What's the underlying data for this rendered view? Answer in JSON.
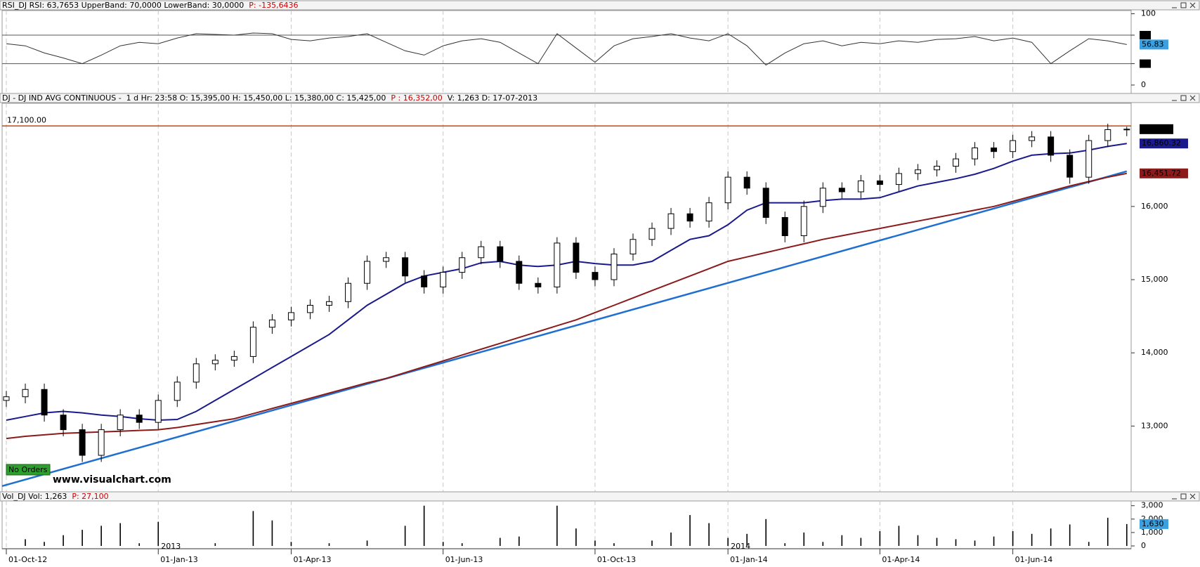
{
  "chart_data": [
    {
      "type": "line",
      "panel": "rsi",
      "header": [
        {
          "text": "RSI_DJ RSI: 63,7653 UpperBand: 70,0000 LowerBand: 30,0000",
          "color": "#000000"
        },
        {
          "text": "P: -135,6436",
          "color": "#cc0000"
        }
      ],
      "ylim": [
        0,
        100
      ],
      "yticks": [
        0,
        30,
        70,
        100
      ],
      "bands": [
        30,
        70
      ],
      "series": [
        {
          "name": "RSI",
          "color": "#333333",
          "last_label": "56.83",
          "label_color": "#3aa0e0",
          "values": [
            58,
            55,
            45,
            38,
            30,
            42,
            55,
            60,
            58,
            66,
            72,
            71,
            70,
            73,
            72,
            64,
            62,
            66,
            68,
            72,
            60,
            48,
            42,
            55,
            62,
            65,
            60,
            45,
            30,
            72,
            52,
            32,
            55,
            65,
            68,
            72,
            66,
            62,
            72,
            55,
            28,
            45,
            58,
            62,
            55,
            60,
            58,
            62,
            60,
            64,
            65,
            68,
            62,
            66,
            60,
            30,
            48,
            65,
            62,
            56.83
          ]
        }
      ]
    },
    {
      "type": "candlestick",
      "panel": "price",
      "header": [
        {
          "text": "DJ - DJ IND AVG CONTINUOUS -  1 d Hr: 23:58 O: 15,395,00 H: 15,450,00 L: 15,380,00 C: 15,425,00",
          "color": "#000000"
        },
        {
          "text": "P : 16,352,00",
          "color": "#cc0000"
        },
        {
          "text": "V: 1,263 D: 17-07-2013",
          "color": "#000000"
        }
      ],
      "ylim": [
        12130,
        17400
      ],
      "yticks": [
        {
          "value": 13000,
          "label": "13,000"
        },
        {
          "value": 14000,
          "label": "14,000"
        },
        {
          "value": 15000,
          "label": "15,000"
        },
        {
          "value": 16000,
          "label": "16,000"
        }
      ],
      "open": [
        13350,
        13400,
        13500,
        13150,
        12950,
        12600,
        12950,
        13150,
        13050,
        13350,
        13600,
        13850,
        13900,
        13950,
        14350,
        14450,
        14550,
        14650,
        14700,
        14950,
        15250,
        15300,
        15050,
        14900,
        15100,
        15300,
        15450,
        15250,
        14950,
        14900,
        15500,
        15100,
        15000,
        15350,
        15550,
        15700,
        15900,
        15800,
        16050,
        16400,
        16250,
        15850,
        15600,
        16000,
        16250,
        16200,
        16350,
        16300,
        16450,
        16500,
        16550,
        16650,
        16800,
        16750,
        16900,
        16950,
        16700,
        16400,
        16900,
        17050
      ],
      "high": [
        13480,
        13580,
        13580,
        13230,
        13030,
        13030,
        13230,
        13230,
        13430,
        13680,
        13930,
        13980,
        14030,
        14430,
        14530,
        14630,
        14730,
        14780,
        15030,
        15330,
        15380,
        15380,
        15130,
        15180,
        15380,
        15530,
        15530,
        15330,
        15030,
        15580,
        15580,
        15180,
        15430,
        15630,
        15780,
        15980,
        15980,
        16130,
        16480,
        16480,
        16330,
        15930,
        16080,
        16330,
        16330,
        16430,
        16430,
        16530,
        16580,
        16630,
        16730,
        16880,
        16880,
        16980,
        17030,
        17030,
        16780,
        16980,
        17130,
        17090
      ],
      "low": [
        13260,
        13310,
        13060,
        12860,
        12510,
        12510,
        12860,
        12960,
        12960,
        13260,
        13510,
        13760,
        13810,
        13860,
        14260,
        14360,
        14460,
        14560,
        14610,
        14860,
        15160,
        14960,
        14810,
        14810,
        15010,
        15210,
        15160,
        14860,
        14810,
        14810,
        15010,
        14910,
        14910,
        15260,
        15460,
        15610,
        15710,
        15710,
        15960,
        16160,
        15760,
        15510,
        15510,
        15910,
        16110,
        16110,
        16210,
        16210,
        16360,
        16410,
        16460,
        16560,
        16660,
        16660,
        16810,
        16610,
        16310,
        16310,
        16810,
        16960
      ],
      "close": [
        13400,
        13500,
        13150,
        12950,
        12600,
        12950,
        13150,
        13050,
        13350,
        13600,
        13850,
        13900,
        13950,
        14350,
        14450,
        14550,
        14650,
        14700,
        14950,
        15250,
        15300,
        15050,
        14900,
        15100,
        15300,
        15450,
        15250,
        14950,
        14900,
        15500,
        15100,
        15000,
        15350,
        15550,
        15700,
        15900,
        15800,
        16050,
        16400,
        16250,
        15850,
        15600,
        16000,
        16250,
        16200,
        16350,
        16300,
        16450,
        16500,
        16550,
        16650,
        16800,
        16750,
        16900,
        16950,
        16700,
        16400,
        16900,
        17050,
        17056
      ],
      "last_label": "17,056",
      "label_color": "#000000",
      "series": [
        {
          "name": "MA",
          "color": "#1a1a8c",
          "last_label": "16,860.32",
          "label_color": "#1a1a8c",
          "values": [
            13080,
            13130,
            13180,
            13200,
            13180,
            13150,
            13130,
            13100,
            13080,
            13090,
            13200,
            13350,
            13500,
            13650,
            13800,
            13950,
            14100,
            14250,
            14450,
            14650,
            14800,
            14950,
            15050,
            15100,
            15150,
            15230,
            15250,
            15200,
            15180,
            15200,
            15250,
            15220,
            15200,
            15200,
            15250,
            15400,
            15550,
            15600,
            15750,
            15950,
            16050,
            16050,
            16050,
            16080,
            16100,
            16100,
            16120,
            16200,
            16280,
            16330,
            16380,
            16440,
            16520,
            16620,
            16700,
            16720,
            16730,
            16770,
            16820,
            16860.32
          ]
        },
        {
          "name": "MA",
          "color": "#8b1a1a",
          "last_label": "16,451.72",
          "label_color": "#8b1a1a",
          "values": [
            12830,
            12860,
            12880,
            12900,
            12910,
            12920,
            12930,
            12940,
            12950,
            12980,
            13020,
            13060,
            13100,
            13170,
            13240,
            13310,
            13380,
            13450,
            13520,
            13590,
            13650,
            13730,
            13810,
            13890,
            13970,
            14050,
            14130,
            14210,
            14290,
            14370,
            14450,
            14550,
            14650,
            14750,
            14850,
            14950,
            15050,
            15150,
            15250,
            15310,
            15370,
            15430,
            15490,
            15550,
            15600,
            15650,
            15700,
            15750,
            15800,
            15850,
            15900,
            15950,
            16000,
            16070,
            16140,
            16210,
            16280,
            16340,
            16400,
            16451.72
          ]
        }
      ],
      "trendline": {
        "color": "#1f6fd0",
        "values": [
          12180,
          16480
        ]
      },
      "hline": {
        "value": 17100,
        "label": "17,100.00",
        "color": "#e03c00"
      },
      "badge": "No Orders",
      "watermark": "www.visualchart.com"
    },
    {
      "type": "bar",
      "panel": "volume",
      "header": [
        {
          "text": "Vol_DJ Vol: 1,263",
          "color": "#000000"
        },
        {
          "text": "P: 27,100",
          "color": "#cc0000"
        }
      ],
      "ylim": [
        0,
        3300
      ],
      "yticks": [
        0,
        {
          "value": 1000,
          "label": "1,000"
        },
        {
          "value": 2000,
          "label": "2,000"
        },
        {
          "value": 3000,
          "label": "3,000"
        }
      ],
      "color": "#000000",
      "last_label": "1,630",
      "label_color": "#3aa0e0",
      "values": [
        0,
        500,
        300,
        800,
        1200,
        1500,
        1700,
        200,
        1800,
        0,
        0,
        200,
        0,
        2600,
        1900,
        300,
        0,
        200,
        0,
        400,
        0,
        1500,
        3000,
        300,
        200,
        0,
        600,
        700,
        0,
        3000,
        1300,
        400,
        200,
        0,
        400,
        1000,
        2300,
        1700,
        600,
        900,
        2000,
        200,
        1000,
        300,
        800,
        600,
        1100,
        1500,
        800,
        600,
        500,
        400,
        700,
        1100,
        900,
        1300,
        1600,
        300,
        2100,
        1630
      ],
      "categories": [
        "01-Oct-12",
        null,
        null,
        null,
        null,
        null,
        null,
        null,
        "01-Jan-13",
        null,
        null,
        null,
        null,
        null,
        null,
        "01-Apr-13",
        null,
        null,
        null,
        null,
        null,
        null,
        null,
        "01-Jun-13",
        null,
        null,
        null,
        null,
        null,
        null,
        null,
        "01-Oct-13",
        null,
        null,
        null,
        null,
        null,
        null,
        "01-Jan-14",
        null,
        null,
        null,
        null,
        null,
        null,
        null,
        "01-Apr-14",
        null,
        null,
        null,
        null,
        null,
        null,
        "01-Jun-14",
        null,
        null,
        null,
        null,
        null,
        null
      ],
      "year_labels": [
        {
          "text": "2013",
          "at": "01-Jan-13"
        },
        {
          "text": "2014",
          "at": "01-Jan-14"
        }
      ]
    }
  ]
}
